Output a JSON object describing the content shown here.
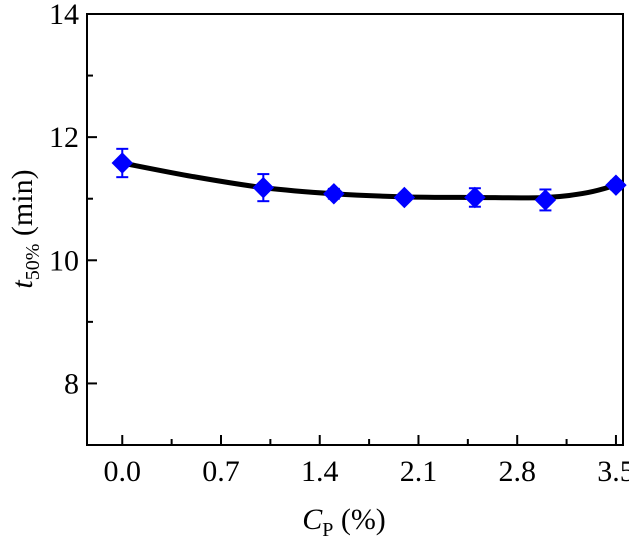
{
  "chart_data": {
    "type": "line",
    "xlabel_main": "C",
    "xlabel_sub": "P",
    "xlabel_unit": " (%)",
    "ylabel_main": "t",
    "ylabel_sub": "50%",
    "ylabel_unit": " (min)",
    "xlim": [
      -0.25,
      3.55
    ],
    "ylim": [
      7.0,
      14.0
    ],
    "x_ticks": [
      {
        "value": 0.0,
        "label": "0.0"
      },
      {
        "value": 0.7,
        "label": "0.7"
      },
      {
        "value": 1.4,
        "label": "1.4"
      },
      {
        "value": 2.1,
        "label": "2.1"
      },
      {
        "value": 2.8,
        "label": "2.8"
      },
      {
        "value": 3.5,
        "label": "3.5"
      }
    ],
    "y_ticks": [
      {
        "value": 8,
        "label": "8"
      },
      {
        "value": 10,
        "label": "10"
      },
      {
        "value": 12,
        "label": "12"
      },
      {
        "value": 14,
        "label": "14"
      }
    ],
    "y_minor_ticks": [
      7,
      9,
      11,
      13
    ],
    "series": [
      {
        "color": "#0000ff",
        "marker": "diamond",
        "points": [
          {
            "x": 0.0,
            "y": 11.58,
            "err": 0.23
          },
          {
            "x": 1.0,
            "y": 11.18,
            "err": 0.22
          },
          {
            "x": 1.5,
            "y": 11.08,
            "err": 0.08
          },
          {
            "x": 2.0,
            "y": 11.02,
            "err": 0.06
          },
          {
            "x": 2.5,
            "y": 11.02,
            "err": 0.15
          },
          {
            "x": 3.0,
            "y": 10.98,
            "err": 0.17
          },
          {
            "x": 3.5,
            "y": 11.22,
            "err": 0.07
          }
        ]
      }
    ],
    "fit_curve": {
      "color": "#000000",
      "x": [
        0.0,
        0.5,
        1.0,
        1.5,
        2.0,
        2.5,
        3.0,
        3.3,
        3.5
      ],
      "y": [
        11.58,
        11.36,
        11.18,
        11.08,
        11.03,
        11.02,
        11.02,
        11.1,
        11.22
      ]
    },
    "legend": "none",
    "grid": false
  }
}
